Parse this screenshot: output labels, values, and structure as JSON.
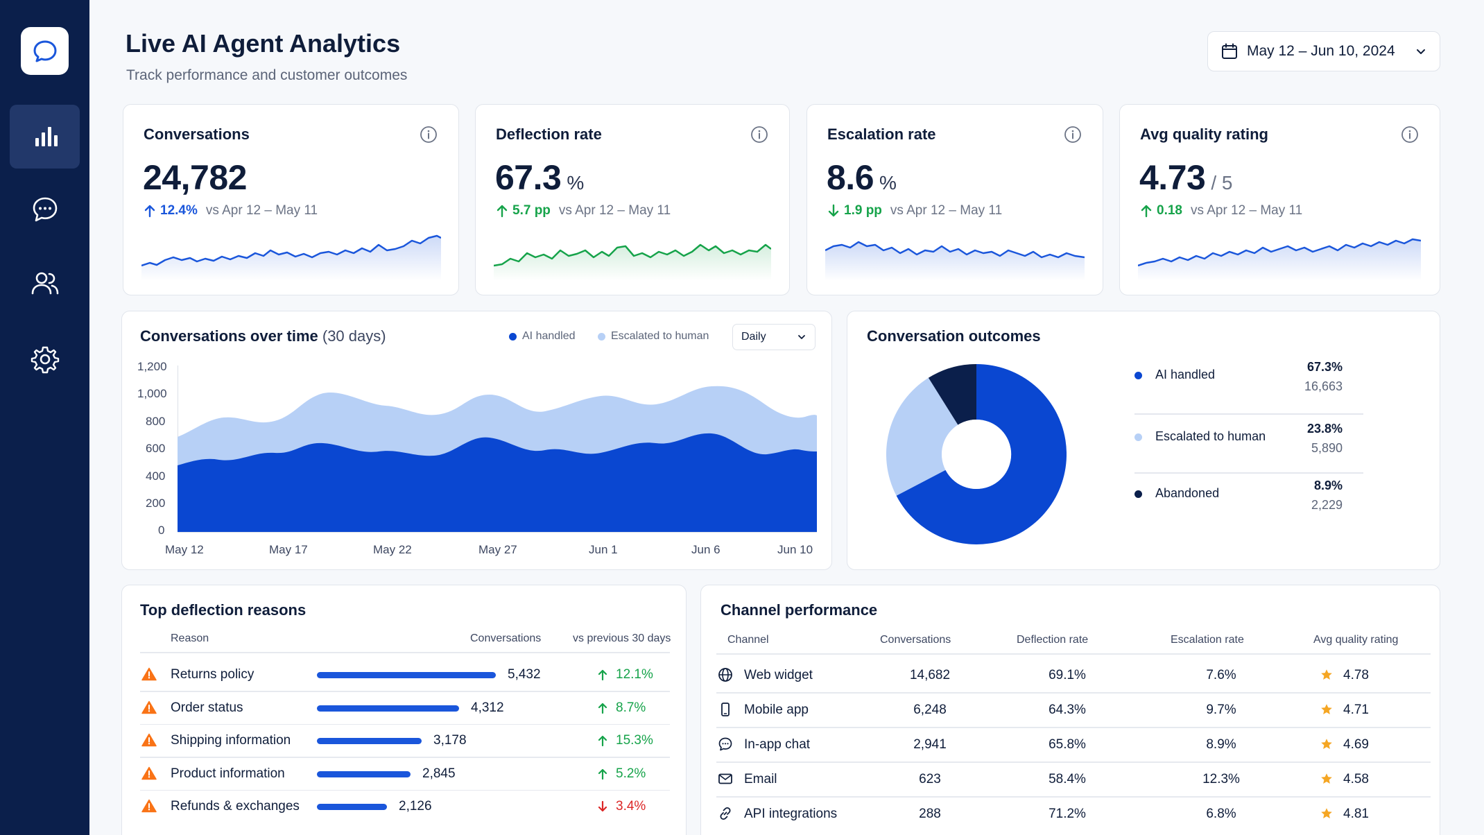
{
  "header": {
    "title": "Live AI Agent Analytics",
    "subtitle": "Track performance and customer outcomes",
    "date_range": "May 12 – Jun 10, 2024"
  },
  "sidebar": {
    "items": [
      {
        "icon": "chat-logo-icon"
      },
      {
        "icon": "bar-chart-icon",
        "active": true
      },
      {
        "icon": "message-icon"
      },
      {
        "icon": "users-icon"
      },
      {
        "icon": "gear-icon"
      }
    ]
  },
  "kpis": [
    {
      "title": "Conversations",
      "value": "24,782",
      "unit": "",
      "delta": "12.4%",
      "direction": "up",
      "color": "#1a56db",
      "comparison": "vs Apr 12 – May 11"
    },
    {
      "title": "Deflection rate",
      "value": "67.3",
      "unit": "%",
      "delta": "5.7 pp",
      "direction": "up",
      "color": "#16a34a",
      "comparison": "vs Apr 12 – May 11"
    },
    {
      "title": "Escalation rate",
      "value": "8.6",
      "unit": "%",
      "delta": "1.9 pp",
      "direction": "down",
      "color": "#16a34a",
      "comparison": "vs Apr 12 – May 11"
    },
    {
      "title": "Avg quality rating",
      "value": "4.73",
      "unit": "/ 5",
      "delta": "0.18",
      "direction": "up",
      "color": "#16a34a",
      "comparison": "vs Apr 12 – May 11"
    }
  ],
  "conversations_chart": {
    "title": "Conversations over time",
    "title_suffix": "(30 days)",
    "legend": [
      "AI handled",
      "Escalated to human"
    ],
    "granularity": "Daily",
    "y_ticks": [
      "1,200",
      "1,000",
      "800",
      "600",
      "400",
      "200",
      "0"
    ],
    "x_ticks": [
      "May 12",
      "May 17",
      "May 22",
      "May 27",
      "Jun 1",
      "Jun 6",
      "Jun 10"
    ]
  },
  "outcomes": {
    "title": "Conversation outcomes",
    "items": [
      {
        "label": "AI handled",
        "pct": "67.3%",
        "count": "16,663",
        "color": "#0a47d1"
      },
      {
        "label": "Escalated to human",
        "pct": "23.8%",
        "count": "5,890",
        "color": "#b7d0f6"
      },
      {
        "label": "Abandoned",
        "pct": "8.9%",
        "count": "2,229",
        "color": "#0b1f4b"
      }
    ]
  },
  "deflection_reasons": {
    "title": "Top deflection reasons",
    "headers": {
      "reason": "Reason",
      "conversations": "Conversations",
      "change": "vs previous 30 days"
    },
    "rows": [
      {
        "reason": "Returns policy",
        "conversations": "5,432",
        "share": 1.0,
        "change": "12.1%",
        "direction": "up"
      },
      {
        "reason": "Order status",
        "conversations": "4,312",
        "share": 0.794,
        "change": "8.7%",
        "direction": "up"
      },
      {
        "reason": "Shipping information",
        "conversations": "3,178",
        "share": 0.585,
        "change": "15.3%",
        "direction": "up"
      },
      {
        "reason": "Product information",
        "conversations": "2,845",
        "share": 0.524,
        "change": "5.2%",
        "direction": "up"
      },
      {
        "reason": "Refunds & exchanges",
        "conversations": "2,126",
        "share": 0.391,
        "change": "3.4%",
        "direction": "down"
      }
    ]
  },
  "channels": {
    "title": "Channel performance",
    "headers": {
      "channel": "Channel",
      "conversations": "Conversations",
      "deflection": "Deflection rate",
      "escalation": "Escalation rate",
      "quality": "Avg quality rating"
    },
    "rows": [
      {
        "icon": "globe-icon",
        "channel": "Web widget",
        "conversations": "14,682",
        "deflection": "69.1%",
        "escalation": "7.6%",
        "quality": "4.78"
      },
      {
        "icon": "mobile-icon",
        "channel": "Mobile app",
        "conversations": "6,248",
        "deflection": "64.3%",
        "escalation": "9.7%",
        "quality": "4.71"
      },
      {
        "icon": "chat-bubble-icon",
        "channel": "In-app chat",
        "conversations": "2,941",
        "deflection": "65.8%",
        "escalation": "8.9%",
        "quality": "4.69"
      },
      {
        "icon": "mail-icon",
        "channel": "Email",
        "conversations": "623",
        "deflection": "58.4%",
        "escalation": "12.3%",
        "quality": "4.58"
      },
      {
        "icon": "link-icon",
        "channel": "API integrations",
        "conversations": "288",
        "deflection": "71.2%",
        "escalation": "6.8%",
        "quality": "4.81"
      }
    ]
  },
  "colors": {
    "sidebar": "#0b1f4b",
    "primary": "#0a47d1",
    "light_blue": "#b7d0f6",
    "positive": "#16a34a",
    "negative": "#dc2626",
    "warning": "#f97316",
    "star": "#f5a623"
  }
}
